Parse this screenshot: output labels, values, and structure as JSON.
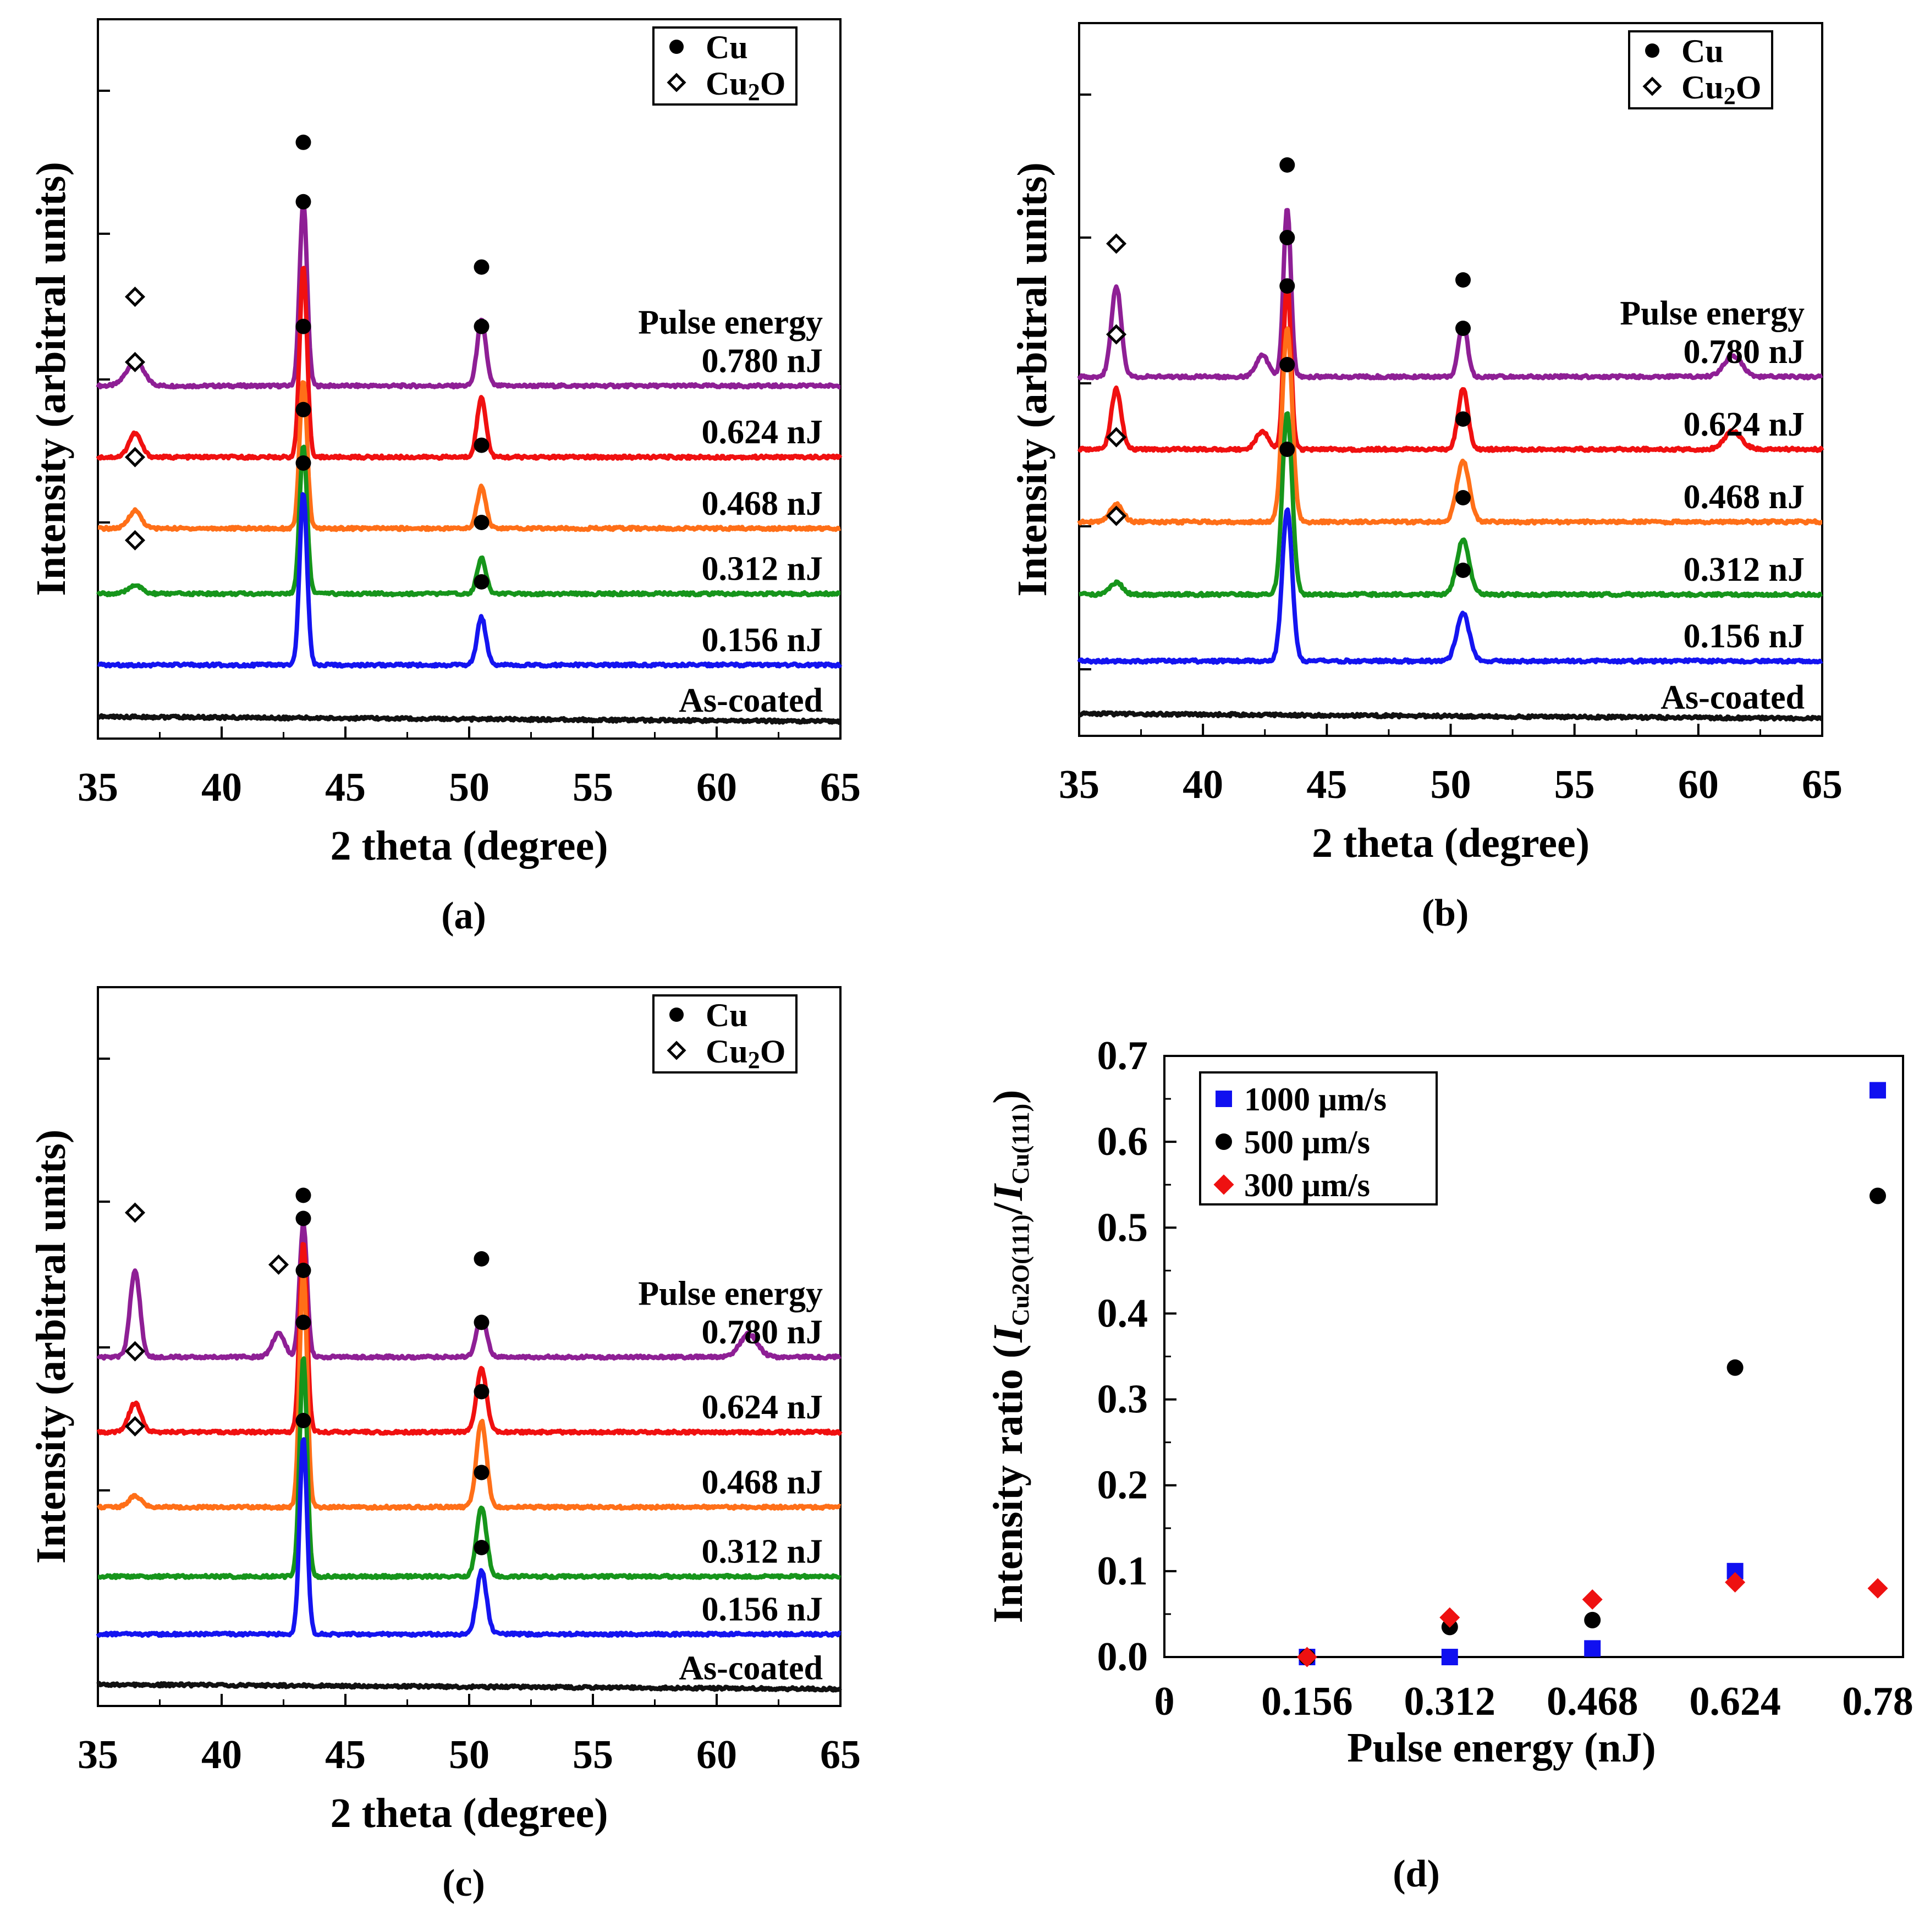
{
  "colors": {
    "0.780 nJ": "#8e1f95",
    "0.624 nJ": "#f01010",
    "0.468 nJ": "#ff6f18",
    "0.312 nJ": "#16951b",
    "0.156 nJ": "#1414f0",
    "As-coated": "#111111"
  },
  "chart_data": [
    {
      "type": "line",
      "panel_label": "(a)",
      "xlabel": "2 theta (degree)",
      "ylabel": "Intensity (arbitral units)",
      "xlim": [
        35,
        65
      ],
      "xticks": [
        "35",
        "40",
        "45",
        "50",
        "55",
        "60",
        "65"
      ],
      "legend": [
        {
          "marker": "circle",
          "label": "Cu"
        },
        {
          "marker": "diamond",
          "label": "Cu",
          "sub": "2",
          "label_tail": "O"
        }
      ],
      "legend_title": "Pulse energy",
      "series": [
        {
          "name": "0.780 nJ",
          "baseline": 5.8,
          "peaks": [
            [
              36.5,
              0.4,
              0.35
            ],
            [
              43.3,
              3.1,
              0.15
            ],
            [
              50.5,
              1.1,
              0.18
            ]
          ],
          "markers": [
            {
              "type": "diamond",
              "x": 36.5,
              "y": 7.3
            },
            {
              "type": "circle",
              "x": 43.3,
              "y": 9.9
            },
            {
              "type": "circle",
              "x": 50.5,
              "y": 7.8
            }
          ]
        },
        {
          "name": "0.624 nJ",
          "baseline": 4.6,
          "peaks": [
            [
              36.5,
              0.4,
              0.25
            ],
            [
              43.3,
              3.2,
              0.15
            ],
            [
              50.5,
              1.0,
              0.18
            ]
          ],
          "markers": [
            {
              "type": "diamond",
              "x": 36.5,
              "y": 6.2
            },
            {
              "type": "circle",
              "x": 43.3,
              "y": 8.9
            },
            {
              "type": "circle",
              "x": 50.5,
              "y": 6.8
            }
          ]
        },
        {
          "name": "0.468 nJ",
          "baseline": 3.4,
          "peaks": [
            [
              36.5,
              0.3,
              0.25
            ],
            [
              43.3,
              2.5,
              0.15
            ],
            [
              50.5,
              0.7,
              0.18
            ]
          ],
          "markers": [
            {
              "type": "diamond",
              "x": 36.5,
              "y": 4.6
            },
            {
              "type": "circle",
              "x": 43.3,
              "y": 6.8
            },
            {
              "type": "circle",
              "x": 50.5,
              "y": 4.8
            }
          ]
        },
        {
          "name": "0.312 nJ",
          "baseline": 2.3,
          "peaks": [
            [
              36.5,
              0.15,
              0.25
            ],
            [
              43.3,
              2.5,
              0.15
            ],
            [
              50.5,
              0.6,
              0.18
            ]
          ],
          "markers": [
            {
              "type": "diamond",
              "x": 36.5,
              "y": 3.2
            },
            {
              "type": "circle",
              "x": 43.3,
              "y": 5.4
            },
            {
              "type": "circle",
              "x": 50.5,
              "y": 3.5
            }
          ]
        },
        {
          "name": "0.156 nJ",
          "baseline": 1.1,
          "peaks": [
            [
              43.3,
              2.9,
              0.15
            ],
            [
              50.5,
              0.8,
              0.18
            ]
          ],
          "markers": [
            {
              "type": "circle",
              "x": 43.3,
              "y": 4.5
            },
            {
              "type": "circle",
              "x": 50.5,
              "y": 2.5
            }
          ]
        },
        {
          "name": "As-coated",
          "baseline": 0.15,
          "peaks": [],
          "markers": []
        }
      ]
    },
    {
      "type": "line",
      "panel_label": "(b)",
      "xlabel": "2 theta (degree)",
      "ylabel": "Intensity (arbitral units)",
      "xlim": [
        35,
        65
      ],
      "xticks": [
        "35",
        "40",
        "45",
        "50",
        "55",
        "60",
        "65"
      ],
      "legend": [
        {
          "marker": "circle",
          "label": "Cu"
        },
        {
          "marker": "diamond",
          "label": "Cu",
          "sub": "2",
          "label_tail": "O"
        }
      ],
      "legend_title": "Pulse energy",
      "series": [
        {
          "name": "0.780 nJ",
          "baseline": 5.8,
          "peaks": [
            [
              36.5,
              1.5,
              0.2
            ],
            [
              42.4,
              0.35,
              0.25
            ],
            [
              43.4,
              2.8,
              0.15
            ],
            [
              50.5,
              0.9,
              0.18
            ],
            [
              61.4,
              0.35,
              0.35
            ]
          ],
          "markers": [
            {
              "type": "diamond",
              "x": 36.5,
              "y": 8.0
            },
            {
              "type": "circle",
              "x": 43.4,
              "y": 9.3
            },
            {
              "type": "circle",
              "x": 50.5,
              "y": 7.4
            }
          ]
        },
        {
          "name": "0.624 nJ",
          "baseline": 4.6,
          "peaks": [
            [
              36.5,
              1.0,
              0.2
            ],
            [
              42.4,
              0.3,
              0.25
            ],
            [
              43.4,
              2.8,
              0.15
            ],
            [
              50.5,
              1.0,
              0.2
            ],
            [
              61.4,
              0.3,
              0.35
            ]
          ],
          "markers": [
            {
              "type": "diamond",
              "x": 36.5,
              "y": 6.5
            },
            {
              "type": "circle",
              "x": 43.4,
              "y": 8.1
            },
            {
              "type": "circle",
              "x": 50.5,
              "y": 6.6
            }
          ]
        },
        {
          "name": "0.468 nJ",
          "baseline": 3.4,
          "peaks": [
            [
              36.5,
              0.3,
              0.25
            ],
            [
              43.4,
              3.2,
              0.2
            ],
            [
              50.5,
              1.0,
              0.25
            ]
          ],
          "markers": [
            {
              "type": "diamond",
              "x": 36.5,
              "y": 4.8
            },
            {
              "type": "circle",
              "x": 43.4,
              "y": 7.3
            },
            {
              "type": "circle",
              "x": 50.5,
              "y": 5.1
            }
          ]
        },
        {
          "name": "0.312 nJ",
          "baseline": 2.2,
          "peaks": [
            [
              36.5,
              0.2,
              0.25
            ],
            [
              43.4,
              3.0,
              0.2
            ],
            [
              50.5,
              0.9,
              0.25
            ]
          ],
          "markers": [
            {
              "type": "diamond",
              "x": 36.5,
              "y": 3.5
            },
            {
              "type": "circle",
              "x": 43.4,
              "y": 6.0
            },
            {
              "type": "circle",
              "x": 50.5,
              "y": 3.8
            }
          ]
        },
        {
          "name": "0.156 nJ",
          "baseline": 1.1,
          "peaks": [
            [
              43.4,
              2.5,
              0.2
            ],
            [
              50.5,
              0.8,
              0.25
            ]
          ],
          "markers": [
            {
              "type": "circle",
              "x": 43.4,
              "y": 4.6
            },
            {
              "type": "circle",
              "x": 50.5,
              "y": 2.6
            }
          ]
        },
        {
          "name": "As-coated",
          "baseline": 0.15,
          "peaks": [],
          "markers": []
        }
      ]
    },
    {
      "type": "line",
      "panel_label": "(c)",
      "xlabel": "2 theta (degree)",
      "ylabel": "Intensity (arbitral units)",
      "xlim": [
        35,
        65
      ],
      "xticks": [
        "35",
        "40",
        "45",
        "50",
        "55",
        "60",
        "65"
      ],
      "legend": [
        {
          "marker": "circle",
          "label": "Cu"
        },
        {
          "marker": "diamond",
          "label": "Cu",
          "sub": "2",
          "label_tail": "O"
        }
      ],
      "legend_title": "Pulse energy",
      "series": [
        {
          "name": "0.780 nJ",
          "baseline": 5.9,
          "peaks": [
            [
              36.5,
              1.5,
              0.2
            ],
            [
              42.3,
              0.4,
              0.25
            ],
            [
              43.3,
              2.3,
              0.15
            ],
            [
              50.5,
              0.7,
              0.2
            ],
            [
              61.3,
              0.4,
              0.35
            ]
          ],
          "markers": [
            {
              "type": "diamond",
              "x": 36.5,
              "y": 8.4
            },
            {
              "type": "diamond",
              "x": 42.3,
              "y": 7.5
            },
            {
              "type": "circle",
              "x": 43.3,
              "y": 8.7
            },
            {
              "type": "circle",
              "x": 50.5,
              "y": 7.6
            }
          ]
        },
        {
          "name": "0.624 nJ",
          "baseline": 4.6,
          "peaks": [
            [
              36.5,
              0.5,
              0.25
            ],
            [
              43.3,
              3.3,
              0.15
            ],
            [
              50.5,
              1.1,
              0.2
            ]
          ],
          "markers": [
            {
              "type": "diamond",
              "x": 36.5,
              "y": 6.0
            },
            {
              "type": "circle",
              "x": 43.3,
              "y": 8.3
            },
            {
              "type": "circle",
              "x": 50.5,
              "y": 6.5
            }
          ]
        },
        {
          "name": "0.468 nJ",
          "baseline": 3.3,
          "peaks": [
            [
              36.5,
              0.2,
              0.25
            ],
            [
              43.3,
              4.1,
              0.15
            ],
            [
              50.5,
              1.5,
              0.2
            ]
          ],
          "markers": [
            {
              "type": "diamond",
              "x": 36.5,
              "y": 4.7
            },
            {
              "type": "circle",
              "x": 43.3,
              "y": 7.4
            },
            {
              "type": "circle",
              "x": 50.5,
              "y": 5.3
            }
          ]
        },
        {
          "name": "0.312 nJ",
          "baseline": 2.1,
          "peaks": [
            [
              43.3,
              3.8,
              0.15
            ],
            [
              50.5,
              1.2,
              0.2
            ]
          ],
          "markers": [
            {
              "type": "circle",
              "x": 43.3,
              "y": 6.5
            },
            {
              "type": "circle",
              "x": 50.5,
              "y": 3.9
            }
          ]
        },
        {
          "name": "0.156 nJ",
          "baseline": 1.1,
          "peaks": [
            [
              43.3,
              3.4,
              0.15
            ],
            [
              50.5,
              1.1,
              0.2
            ]
          ],
          "markers": [
            {
              "type": "circle",
              "x": 43.3,
              "y": 4.8
            },
            {
              "type": "circle",
              "x": 50.5,
              "y": 2.6
            }
          ]
        },
        {
          "name": "As-coated",
          "baseline": 0.15,
          "peaks": [],
          "markers": []
        }
      ]
    },
    {
      "type": "scatter",
      "panel_label": "(d)",
      "xlabel": "Pulse energy (nJ)",
      "ylabel_parts": [
        "Intensity ratio (",
        "I",
        "Cu2O(111)",
        "/",
        "I",
        "Cu(111)",
        ")"
      ],
      "xticks": [
        "0",
        "0.156",
        "0.312",
        "0.468",
        "0.624",
        "0.78"
      ],
      "xlim": [
        0,
        0.78
      ],
      "ylim": [
        0,
        0.7
      ],
      "yticks": [
        "0.0",
        "0.1",
        "0.2",
        "0.3",
        "0.4",
        "0.5",
        "0.6",
        "0.7"
      ],
      "series": [
        {
          "name": "1000 μm/s",
          "marker": "square",
          "color": "#1010f0",
          "x": [
            0.156,
            0.312,
            0.468,
            0.624,
            0.78
          ],
          "y": [
            0.0,
            0.0,
            0.01,
            0.1,
            0.66
          ]
        },
        {
          "name": "500 μm/s",
          "marker": "circle",
          "color": "#000000",
          "x": [
            0.156,
            0.312,
            0.468,
            0.624,
            0.78
          ],
          "y": [
            0.0,
            0.035,
            0.043,
            0.337,
            0.537
          ]
        },
        {
          "name": "300 μm/s",
          "marker": "diamond",
          "color": "#ee1111",
          "x": [
            0.156,
            0.312,
            0.468,
            0.624,
            0.78
          ],
          "y": [
            0.0,
            0.046,
            0.067,
            0.087,
            0.08
          ]
        }
      ]
    }
  ]
}
